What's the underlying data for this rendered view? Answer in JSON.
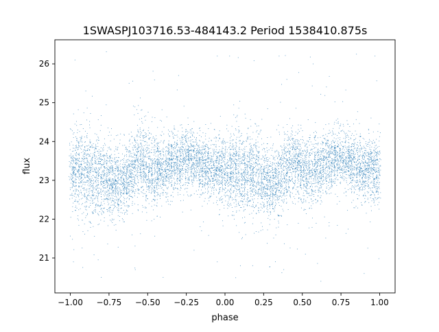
{
  "figure": {
    "title": "1SWASPJ103716.53-484143.2 Period 1538410.875s"
  },
  "chart_data": {
    "type": "scatter",
    "title": "1SWASPJ103716.53-484143.2 Period 1538410.875s",
    "xlabel": "phase",
    "ylabel": "flux",
    "xlim": [
      -1.1,
      1.1
    ],
    "ylim": [
      20.1,
      26.62
    ],
    "xticks": [
      -1.0,
      -0.75,
      -0.5,
      -0.25,
      0.0,
      0.25,
      0.5,
      0.75,
      1.0
    ],
    "xtick_labels": [
      "−1.00",
      "−0.75",
      "−0.50",
      "−0.25",
      "0.00",
      "0.25",
      "0.50",
      "0.75",
      "1.00"
    ],
    "yticks": [
      21,
      22,
      23,
      24,
      25,
      26
    ],
    "ytick_labels": [
      "21",
      "22",
      "23",
      "24",
      "25",
      "26"
    ],
    "grid": false,
    "marker_color": "#1f77b4",
    "series": [
      {
        "profile": {
          "x": [
            -1.0,
            -0.95,
            -0.9,
            -0.85,
            -0.8,
            -0.75,
            -0.7,
            -0.65,
            -0.6,
            -0.55,
            -0.5,
            -0.45,
            -0.4,
            -0.35,
            -0.3,
            -0.25,
            -0.2,
            -0.15,
            -0.1,
            -0.05,
            0.0,
            0.05,
            0.1,
            0.15,
            0.2,
            0.25,
            0.3,
            0.35,
            0.4,
            0.45,
            0.5,
            0.55,
            0.6,
            0.65,
            0.7,
            0.75,
            0.8,
            0.85,
            0.9,
            0.95,
            1.0
          ],
          "median_flux": [
            23.2,
            23.3,
            23.2,
            23.1,
            23.2,
            23.0,
            22.9,
            23.0,
            23.3,
            23.5,
            23.3,
            23.2,
            23.3,
            23.4,
            23.5,
            23.6,
            23.5,
            23.4,
            23.3,
            23.3,
            23.2,
            23.3,
            23.2,
            23.1,
            23.2,
            23.0,
            22.9,
            23.0,
            23.3,
            23.5,
            23.3,
            23.2,
            23.3,
            23.4,
            23.5,
            23.6,
            23.5,
            23.4,
            23.3,
            23.3,
            23.2
          ],
          "spread": [
            0.6,
            0.7,
            0.8,
            0.7,
            0.7,
            0.6,
            0.6,
            0.6,
            0.6,
            0.6,
            0.6,
            0.6,
            0.5,
            0.5,
            0.5,
            0.5,
            0.5,
            0.5,
            0.5,
            0.5,
            0.6,
            0.7,
            0.8,
            0.7,
            0.7,
            0.6,
            0.6,
            0.6,
            0.6,
            0.6,
            0.6,
            0.6,
            0.5,
            0.5,
            0.5,
            0.5,
            0.5,
            0.5,
            0.5,
            0.5,
            0.6
          ]
        },
        "outliers": [
          [
            -0.97,
            26.1
          ],
          [
            -0.9,
            25.3
          ],
          [
            -0.62,
            25.5
          ],
          [
            -0.3,
            25.7
          ],
          [
            -0.05,
            26.2
          ],
          [
            0.03,
            26.2
          ],
          [
            0.35,
            26.2
          ],
          [
            0.4,
            25.6
          ],
          [
            0.57,
            26.0
          ],
          [
            0.85,
            26.25
          ],
          [
            0.97,
            26.2
          ],
          [
            -0.8,
            20.5
          ],
          [
            -0.58,
            20.7
          ],
          [
            -0.4,
            20.5
          ],
          [
            -0.05,
            20.9
          ],
          [
            0.1,
            20.8
          ],
          [
            0.38,
            20.7
          ],
          [
            0.62,
            20.4
          ],
          [
            0.9,
            20.6
          ],
          [
            -0.98,
            20.9
          ],
          [
            -0.2,
            21.2
          ],
          [
            0.52,
            21.1
          ]
        ]
      }
    ],
    "point_count": 9000
  }
}
